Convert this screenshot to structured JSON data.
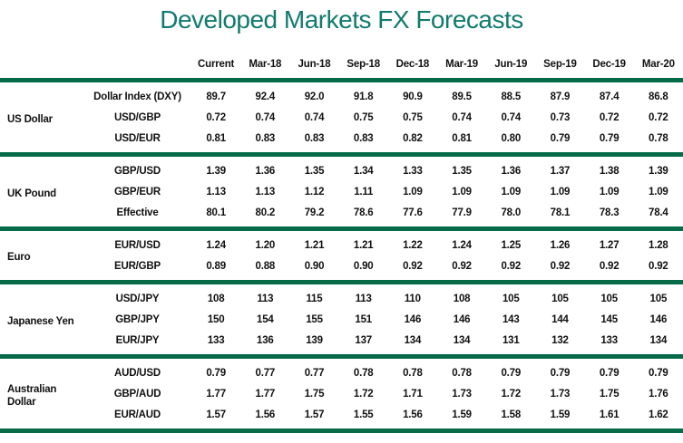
{
  "title": "Developed Markets FX Forecasts",
  "colors": {
    "title": "#117A6E",
    "divider_bar": "#046A47",
    "text": "#111111",
    "background": "#FFFFFF"
  },
  "chart_data": {
    "type": "table",
    "title": "Developed Markets FX Forecasts",
    "columns": [
      "Current",
      "Mar-18",
      "Jun-18",
      "Sep-18",
      "Dec-18",
      "Mar-19",
      "Jun-19",
      "Sep-19",
      "Dec-19",
      "Mar-20"
    ],
    "sections": [
      {
        "group": "US Dollar",
        "rows": [
          {
            "label": "Dollar Index (DXY)",
            "values": [
              "89.7",
              "92.4",
              "92.0",
              "91.8",
              "90.9",
              "89.5",
              "88.5",
              "87.9",
              "87.4",
              "86.8"
            ]
          },
          {
            "label": "USD/GBP",
            "values": [
              "0.72",
              "0.74",
              "0.74",
              "0.75",
              "0.75",
              "0.74",
              "0.74",
              "0.73",
              "0.72",
              "0.72"
            ]
          },
          {
            "label": "USD/EUR",
            "values": [
              "0.81",
              "0.83",
              "0.83",
              "0.83",
              "0.82",
              "0.81",
              "0.80",
              "0.79",
              "0.79",
              "0.78"
            ]
          }
        ]
      },
      {
        "group": "UK Pound",
        "rows": [
          {
            "label": "GBP/USD",
            "values": [
              "1.39",
              "1.36",
              "1.35",
              "1.34",
              "1.33",
              "1.35",
              "1.36",
              "1.37",
              "1.38",
              "1.39"
            ]
          },
          {
            "label": "GBP/EUR",
            "values": [
              "1.13",
              "1.13",
              "1.12",
              "1.11",
              "1.09",
              "1.09",
              "1.09",
              "1.09",
              "1.09",
              "1.09"
            ]
          },
          {
            "label": "Effective",
            "values": [
              "80.1",
              "80.2",
              "79.2",
              "78.6",
              "77.6",
              "77.9",
              "78.0",
              "78.1",
              "78.3",
              "78.4"
            ]
          }
        ]
      },
      {
        "group": "Euro",
        "rows": [
          {
            "label": "EUR/USD",
            "values": [
              "1.24",
              "1.20",
              "1.21",
              "1.21",
              "1.22",
              "1.24",
              "1.25",
              "1.26",
              "1.27",
              "1.28"
            ]
          },
          {
            "label": "EUR/GBP",
            "values": [
              "0.89",
              "0.88",
              "0.90",
              "0.90",
              "0.92",
              "0.92",
              "0.92",
              "0.92",
              "0.92",
              "0.92"
            ]
          }
        ]
      },
      {
        "group": "Japanese Yen",
        "rows": [
          {
            "label": "USD/JPY",
            "values": [
              "108",
              "113",
              "115",
              "113",
              "110",
              "108",
              "105",
              "105",
              "105",
              "105"
            ]
          },
          {
            "label": "GBP/JPY",
            "values": [
              "150",
              "154",
              "155",
              "151",
              "146",
              "146",
              "143",
              "144",
              "145",
              "146"
            ]
          },
          {
            "label": "EUR/JPY",
            "values": [
              "133",
              "136",
              "139",
              "137",
              "134",
              "134",
              "131",
              "132",
              "133",
              "134"
            ]
          }
        ]
      },
      {
        "group": "Australian Dollar",
        "rows": [
          {
            "label": "AUD/USD",
            "values": [
              "0.79",
              "0.77",
              "0.77",
              "0.78",
              "0.78",
              "0.78",
              "0.79",
              "0.79",
              "0.79",
              "0.79"
            ]
          },
          {
            "label": "GBP/AUD",
            "values": [
              "1.77",
              "1.77",
              "1.75",
              "1.72",
              "1.71",
              "1.73",
              "1.72",
              "1.73",
              "1.75",
              "1.76"
            ]
          },
          {
            "label": "EUR/AUD",
            "values": [
              "1.57",
              "1.56",
              "1.57",
              "1.55",
              "1.56",
              "1.59",
              "1.58",
              "1.59",
              "1.61",
              "1.62"
            ]
          }
        ]
      }
    ]
  }
}
